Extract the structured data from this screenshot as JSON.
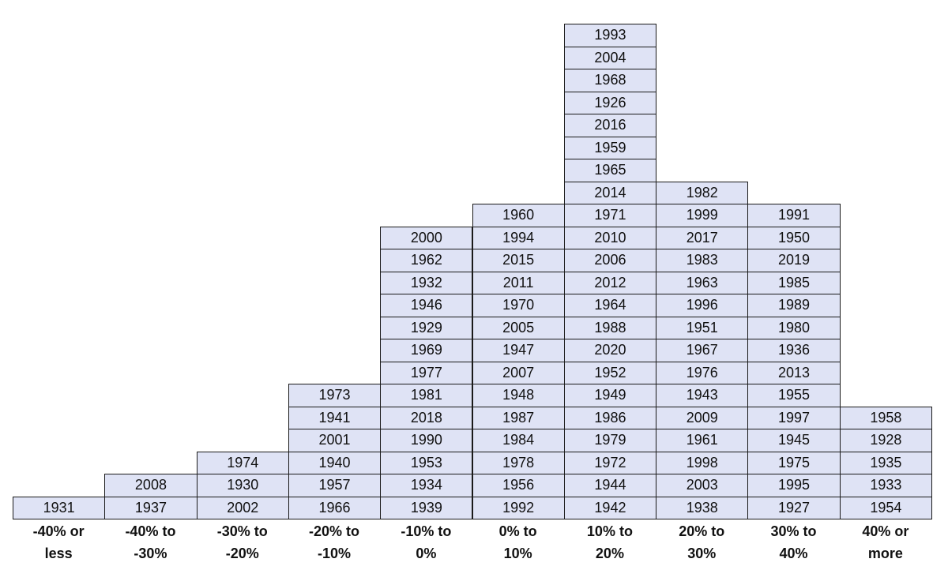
{
  "chart_data": {
    "type": "histogram",
    "title": "",
    "xlabel": "",
    "ylabel": "",
    "grid": false,
    "legend": "none",
    "colors": {
      "cell_fill": "#dfe3f5",
      "cell_border": "#1a1a1a",
      "text": "#111111"
    },
    "bins": [
      {
        "label": [
          "-40% or",
          "less"
        ],
        "count": 1,
        "years": [
          "1931"
        ]
      },
      {
        "label": [
          "-40% to",
          "-30%"
        ],
        "count": 2,
        "years": [
          "1937",
          "2008"
        ]
      },
      {
        "label": [
          "-30% to",
          "-20%"
        ],
        "count": 3,
        "years": [
          "2002",
          "1930",
          "1974"
        ]
      },
      {
        "label": [
          "-20% to",
          "-10%"
        ],
        "count": 6,
        "years": [
          "1966",
          "1957",
          "1940",
          "2001",
          "1941",
          "1973"
        ]
      },
      {
        "label": [
          "-10% to",
          "0%"
        ],
        "count": 13,
        "years": [
          "1939",
          "1934",
          "1953",
          "1990",
          "2018",
          "1981",
          "1977",
          "1969",
          "1929",
          "1946",
          "1932",
          "1962",
          "2000"
        ]
      },
      {
        "label": [
          "0% to",
          "10%"
        ],
        "count": 14,
        "years": [
          "1992",
          "1956",
          "1978",
          "1984",
          "1987",
          "1948",
          "2007",
          "1947",
          "2005",
          "1970",
          "2011",
          "2015",
          "1994",
          "1960"
        ]
      },
      {
        "label": [
          "10% to",
          "20%"
        ],
        "count": 22,
        "years": [
          "1942",
          "1944",
          "1972",
          "1979",
          "1986",
          "1949",
          "1952",
          "2020",
          "1988",
          "1964",
          "2012",
          "2006",
          "2010",
          "1971",
          "2014",
          "1965",
          "1959",
          "2016",
          "1926",
          "1968",
          "2004",
          "1993"
        ]
      },
      {
        "label": [
          "20% to",
          "30%"
        ],
        "count": 15,
        "years": [
          "1938",
          "2003",
          "1998",
          "1961",
          "2009",
          "1943",
          "1976",
          "1967",
          "1951",
          "1996",
          "1963",
          "1983",
          "2017",
          "1999",
          "1982"
        ]
      },
      {
        "label": [
          "30% to",
          "40%"
        ],
        "count": 14,
        "years": [
          "1927",
          "1995",
          "1975",
          "1945",
          "1997",
          "1955",
          "2013",
          "1936",
          "1980",
          "1989",
          "1985",
          "2019",
          "1950",
          "1991"
        ]
      },
      {
        "label": [
          "40% or",
          "more"
        ],
        "count": 5,
        "years": [
          "1954",
          "1933",
          "1935",
          "1928",
          "1958"
        ]
      }
    ]
  }
}
